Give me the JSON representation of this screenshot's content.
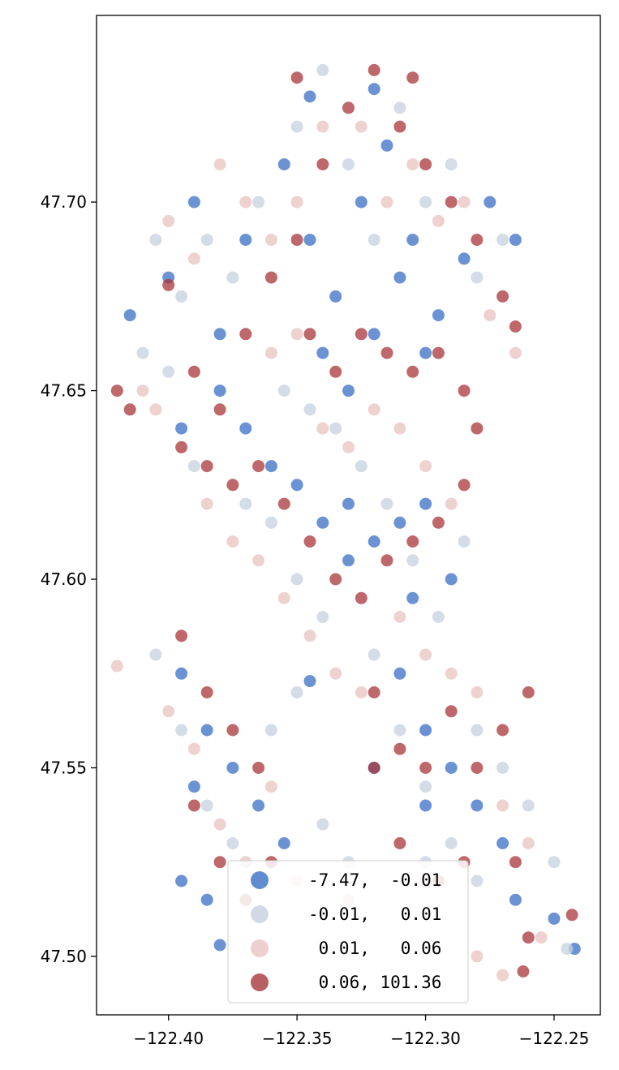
{
  "chart_data": {
    "type": "scatter",
    "title": "",
    "xlabel": "",
    "ylabel": "",
    "xlim": [
      -122.428,
      -122.232
    ],
    "ylim": [
      47.4845,
      47.7495
    ],
    "x_ticks": [
      -122.4,
      -122.35,
      -122.3,
      -122.25
    ],
    "x_tick_labels": [
      "−122.40",
      "−122.35",
      "−122.30",
      "−122.25"
    ],
    "y_ticks": [
      47.5,
      47.55,
      47.6,
      47.65,
      47.7
    ],
    "y_tick_labels": [
      "47.50",
      "47.55",
      "47.60",
      "47.65",
      "47.70"
    ],
    "grid": false,
    "legend_position": "lower-center",
    "colors": {
      "class_1": "#3a6fc4",
      "class_2": "#c5d0e0",
      "class_3": "#e8c3c0",
      "class_4": "#a8363a"
    },
    "legend": [
      {
        "label": "-7.47,  -0.01",
        "color": "#3a6fc4"
      },
      {
        "label": "-0.01,   0.01",
        "color": "#c5d0e0"
      },
      {
        "label": " 0.01,   0.06",
        "color": "#e8c3c0"
      },
      {
        "label": " 0.06, 101.36",
        "color": "#a8363a"
      }
    ],
    "series": [
      {
        "class": 1,
        "points": [
          [
            -122.415,
            47.67
          ],
          [
            -122.4,
            47.68
          ],
          [
            -122.39,
            47.7
          ],
          [
            -122.38,
            47.665
          ],
          [
            -122.37,
            47.69
          ],
          [
            -122.355,
            47.71
          ],
          [
            -122.345,
            47.69
          ],
          [
            -122.335,
            47.675
          ],
          [
            -122.325,
            47.7
          ],
          [
            -122.315,
            47.715
          ],
          [
            -122.305,
            47.69
          ],
          [
            -122.295,
            47.67
          ],
          [
            -122.285,
            47.685
          ],
          [
            -122.275,
            47.7
          ],
          [
            -122.265,
            47.69
          ],
          [
            -122.34,
            47.66
          ],
          [
            -122.33,
            47.65
          ],
          [
            -122.32,
            47.665
          ],
          [
            -122.31,
            47.68
          ],
          [
            -122.3,
            47.66
          ],
          [
            -122.395,
            47.64
          ],
          [
            -122.38,
            47.65
          ],
          [
            -122.37,
            47.64
          ],
          [
            -122.36,
            47.63
          ],
          [
            -122.35,
            47.625
          ],
          [
            -122.34,
            47.615
          ],
          [
            -122.33,
            47.62
          ],
          [
            -122.32,
            47.61
          ],
          [
            -122.31,
            47.615
          ],
          [
            -122.3,
            47.62
          ],
          [
            -122.29,
            47.6
          ],
          [
            -122.305,
            47.595
          ],
          [
            -122.33,
            47.605
          ],
          [
            -122.345,
            47.573
          ],
          [
            -122.31,
            47.575
          ],
          [
            -122.3,
            47.56
          ],
          [
            -122.29,
            47.55
          ],
          [
            -122.28,
            47.54
          ],
          [
            -122.27,
            47.53
          ],
          [
            -122.3,
            47.54
          ],
          [
            -122.32,
            47.55
          ],
          [
            -122.395,
            47.575
          ],
          [
            -122.385,
            47.56
          ],
          [
            -122.375,
            47.55
          ],
          [
            -122.365,
            47.54
          ],
          [
            -122.355,
            47.53
          ],
          [
            -122.39,
            47.545
          ],
          [
            -122.395,
            47.52
          ],
          [
            -122.385,
            47.515
          ],
          [
            -122.38,
            47.503
          ],
          [
            -122.242,
            47.502
          ],
          [
            -122.25,
            47.51
          ],
          [
            -122.265,
            47.515
          ],
          [
            -122.345,
            47.728
          ],
          [
            -122.32,
            47.73
          ]
        ]
      },
      {
        "class": 2,
        "points": [
          [
            -122.41,
            47.66
          ],
          [
            -122.405,
            47.69
          ],
          [
            -122.395,
            47.675
          ],
          [
            -122.385,
            47.69
          ],
          [
            -122.375,
            47.68
          ],
          [
            -122.365,
            47.7
          ],
          [
            -122.35,
            47.72
          ],
          [
            -122.34,
            47.735
          ],
          [
            -122.33,
            47.71
          ],
          [
            -122.32,
            47.69
          ],
          [
            -122.31,
            47.725
          ],
          [
            -122.3,
            47.7
          ],
          [
            -122.29,
            47.71
          ],
          [
            -122.28,
            47.68
          ],
          [
            -122.27,
            47.69
          ],
          [
            -122.355,
            47.65
          ],
          [
            -122.345,
            47.645
          ],
          [
            -122.335,
            47.64
          ],
          [
            -122.325,
            47.63
          ],
          [
            -122.315,
            47.62
          ],
          [
            -122.305,
            47.605
          ],
          [
            -122.295,
            47.59
          ],
          [
            -122.285,
            47.61
          ],
          [
            -122.4,
            47.655
          ],
          [
            -122.39,
            47.63
          ],
          [
            -122.37,
            47.62
          ],
          [
            -122.36,
            47.615
          ],
          [
            -122.35,
            47.6
          ],
          [
            -122.34,
            47.59
          ],
          [
            -122.32,
            47.58
          ],
          [
            -122.31,
            47.56
          ],
          [
            -122.3,
            47.545
          ],
          [
            -122.29,
            47.53
          ],
          [
            -122.28,
            47.56
          ],
          [
            -122.27,
            47.55
          ],
          [
            -122.26,
            47.54
          ],
          [
            -122.405,
            47.58
          ],
          [
            -122.395,
            47.56
          ],
          [
            -122.385,
            47.54
          ],
          [
            -122.375,
            47.53
          ],
          [
            -122.36,
            47.56
          ],
          [
            -122.35,
            47.57
          ],
          [
            -122.34,
            47.535
          ],
          [
            -122.33,
            47.525
          ],
          [
            -122.3,
            47.525
          ],
          [
            -122.28,
            47.52
          ],
          [
            -122.25,
            47.525
          ],
          [
            -122.245,
            47.502
          ]
        ]
      },
      {
        "class": 3,
        "points": [
          [
            -122.41,
            47.65
          ],
          [
            -122.4,
            47.695
          ],
          [
            -122.39,
            47.685
          ],
          [
            -122.38,
            47.71
          ],
          [
            -122.37,
            47.7
          ],
          [
            -122.36,
            47.69
          ],
          [
            -122.35,
            47.7
          ],
          [
            -122.34,
            47.72
          ],
          [
            -122.325,
            47.72
          ],
          [
            -122.315,
            47.7
          ],
          [
            -122.305,
            47.71
          ],
          [
            -122.295,
            47.695
          ],
          [
            -122.285,
            47.7
          ],
          [
            -122.275,
            47.67
          ],
          [
            -122.265,
            47.66
          ],
          [
            -122.36,
            47.66
          ],
          [
            -122.35,
            47.665
          ],
          [
            -122.34,
            47.64
          ],
          [
            -122.33,
            47.635
          ],
          [
            -122.32,
            47.645
          ],
          [
            -122.31,
            47.64
          ],
          [
            -122.3,
            47.63
          ],
          [
            -122.29,
            47.62
          ],
          [
            -122.405,
            47.645
          ],
          [
            -122.385,
            47.62
          ],
          [
            -122.375,
            47.61
          ],
          [
            -122.365,
            47.605
          ],
          [
            -122.355,
            47.595
          ],
          [
            -122.345,
            47.585
          ],
          [
            -122.335,
            47.575
          ],
          [
            -122.325,
            47.57
          ],
          [
            -122.31,
            47.59
          ],
          [
            -122.3,
            47.58
          ],
          [
            -122.29,
            47.575
          ],
          [
            -122.28,
            47.57
          ],
          [
            -122.27,
            47.54
          ],
          [
            -122.26,
            47.53
          ],
          [
            -122.42,
            47.577
          ],
          [
            -122.4,
            47.565
          ],
          [
            -122.39,
            47.555
          ],
          [
            -122.38,
            47.535
          ],
          [
            -122.37,
            47.525
          ],
          [
            -122.36,
            47.545
          ],
          [
            -122.35,
            47.52
          ],
          [
            -122.33,
            47.515
          ],
          [
            -122.3,
            47.52
          ],
          [
            -122.28,
            47.5
          ],
          [
            -122.27,
            47.495
          ],
          [
            -122.255,
            47.505
          ]
        ]
      },
      {
        "class": 4,
        "points": [
          [
            -122.42,
            47.65
          ],
          [
            -122.415,
            47.645
          ],
          [
            -122.4,
            47.678
          ],
          [
            -122.39,
            47.655
          ],
          [
            -122.38,
            47.645
          ],
          [
            -122.37,
            47.665
          ],
          [
            -122.36,
            47.68
          ],
          [
            -122.35,
            47.69
          ],
          [
            -122.34,
            47.71
          ],
          [
            -122.33,
            47.725
          ],
          [
            -122.32,
            47.735
          ],
          [
            -122.31,
            47.72
          ],
          [
            -122.3,
            47.71
          ],
          [
            -122.29,
            47.7
          ],
          [
            -122.28,
            47.69
          ],
          [
            -122.27,
            47.675
          ],
          [
            -122.265,
            47.667
          ],
          [
            -122.345,
            47.665
          ],
          [
            -122.335,
            47.655
          ],
          [
            -122.325,
            47.665
          ],
          [
            -122.315,
            47.66
          ],
          [
            -122.305,
            47.655
          ],
          [
            -122.295,
            47.66
          ],
          [
            -122.285,
            47.65
          ],
          [
            -122.395,
            47.635
          ],
          [
            -122.385,
            47.63
          ],
          [
            -122.375,
            47.625
          ],
          [
            -122.365,
            47.63
          ],
          [
            -122.355,
            47.62
          ],
          [
            -122.345,
            47.61
          ],
          [
            -122.335,
            47.6
          ],
          [
            -122.325,
            47.595
          ],
          [
            -122.315,
            47.605
          ],
          [
            -122.305,
            47.61
          ],
          [
            -122.295,
            47.615
          ],
          [
            -122.285,
            47.625
          ],
          [
            -122.28,
            47.64
          ],
          [
            -122.32,
            47.57
          ],
          [
            -122.31,
            47.555
          ],
          [
            -122.3,
            47.55
          ],
          [
            -122.29,
            47.565
          ],
          [
            -122.28,
            47.55
          ],
          [
            -122.27,
            47.56
          ],
          [
            -122.26,
            47.57
          ],
          [
            -122.395,
            47.585
          ],
          [
            -122.385,
            47.57
          ],
          [
            -122.375,
            47.56
          ],
          [
            -122.365,
            47.55
          ],
          [
            -122.39,
            47.54
          ],
          [
            -122.38,
            47.525
          ],
          [
            -122.37,
            47.515
          ],
          [
            -122.36,
            47.525
          ],
          [
            -122.32,
            47.55
          ],
          [
            -122.31,
            47.53
          ],
          [
            -122.295,
            47.52
          ],
          [
            -122.285,
            47.525
          ],
          [
            -122.265,
            47.525
          ],
          [
            -122.26,
            47.505
          ],
          [
            -122.262,
            47.496
          ],
          [
            -122.243,
            47.511
          ],
          [
            -122.35,
            47.733
          ],
          [
            -122.305,
            47.733
          ]
        ]
      }
    ]
  }
}
